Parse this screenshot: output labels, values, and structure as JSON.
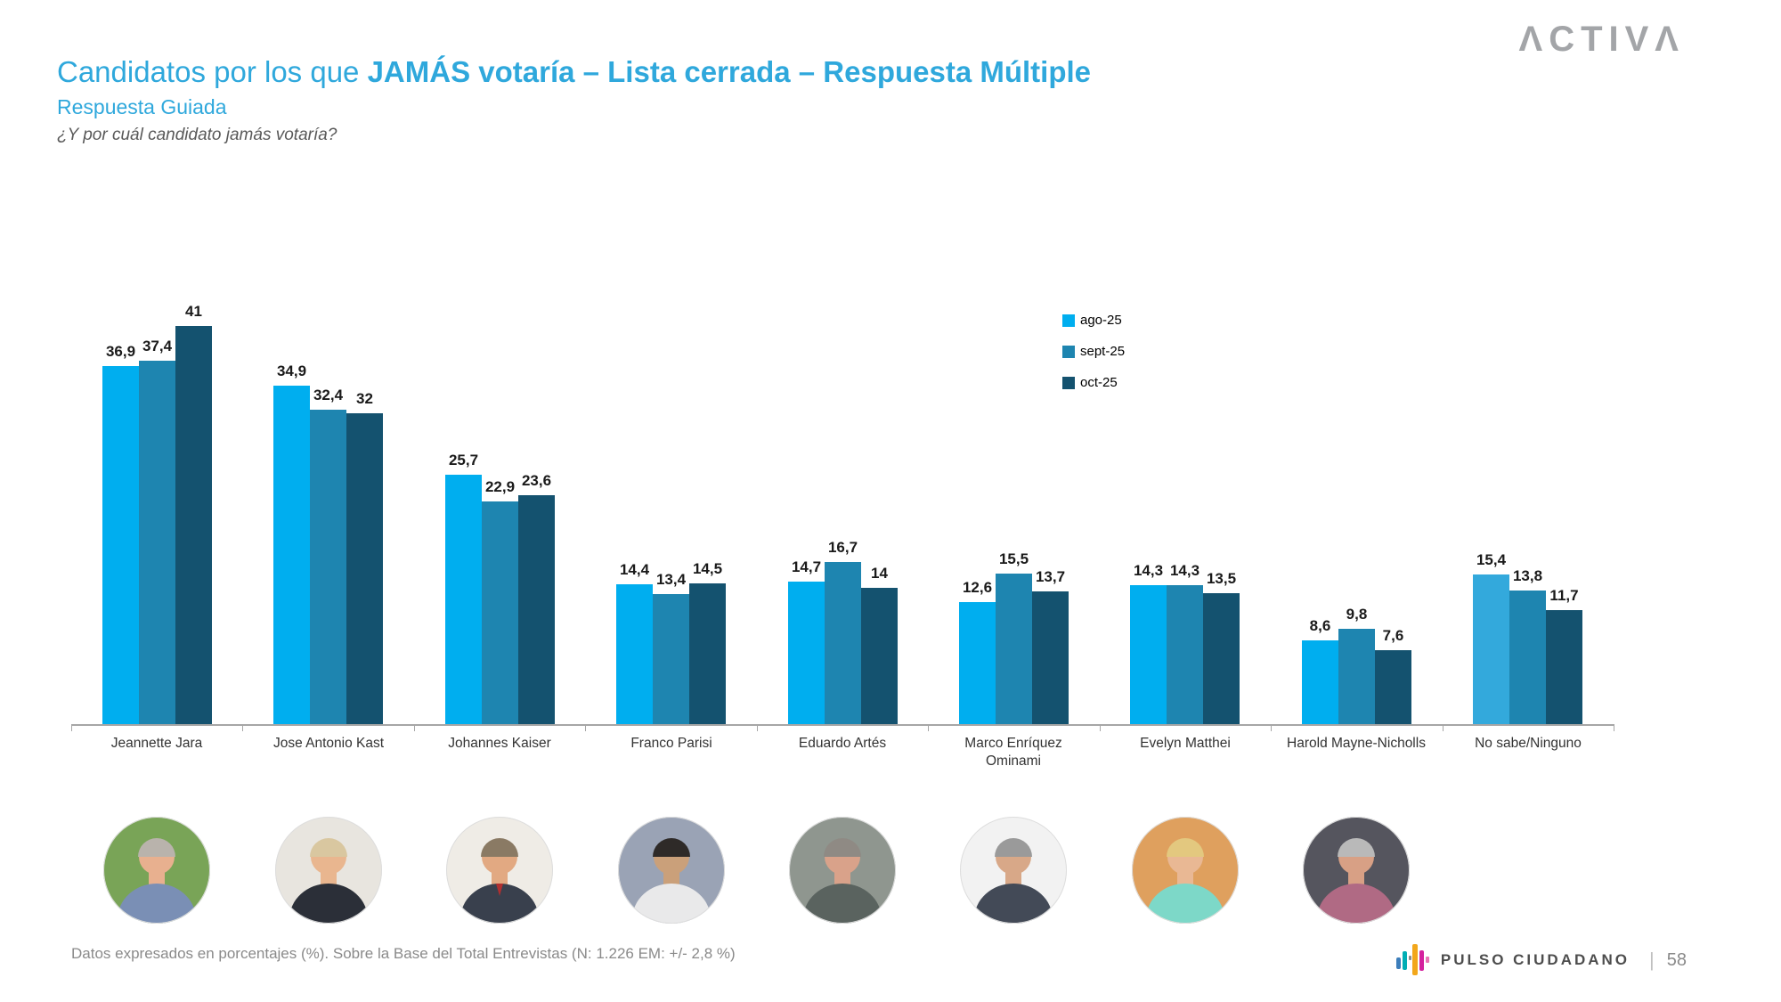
{
  "brand": {
    "name": "ACTIVA",
    "logo_text": "ΛCTIVΛ",
    "color": "#a3a5a8"
  },
  "header": {
    "title_regular": "Candidatos por los que ",
    "title_bold": "JAMÁS votaría – Lista cerrada – Respuesta Múltiple",
    "subtitle": "Respuesta Guiada",
    "question": "¿Y por cuál candidato jamás votaría?",
    "title_color": "#2fa8dc"
  },
  "chart_data": {
    "type": "bar",
    "title": "Candidatos por los que JAMÁS votaría – Lista cerrada – Respuesta Múltiple",
    "categories": [
      "Jeannette Jara",
      "Jose Antonio Kast",
      "Johannes Kaiser",
      "Franco Parisi",
      "Eduardo Artés",
      "Marco Enríquez Ominami",
      "Evelyn Matthei",
      "Harold Mayne-Nicholls",
      "No sabe/Ninguno"
    ],
    "series": [
      {
        "name": "ago-25",
        "color": "#00aeef",
        "values": [
          36.9,
          34.9,
          25.7,
          14.4,
          14.7,
          12.6,
          14.3,
          8.6,
          15.4
        ],
        "labels": [
          "36,9",
          "34,9",
          "25,7",
          "14,4",
          "14,7",
          "12,6",
          "14,3",
          "8,6",
          "15,4"
        ]
      },
      {
        "name": "sept-25",
        "color": "#1e85b0",
        "values": [
          37.4,
          32.4,
          22.9,
          13.4,
          16.7,
          15.5,
          14.3,
          9.8,
          13.8
        ],
        "labels": [
          "37,4",
          "32,4",
          "22,9",
          "13,4",
          "16,7",
          "15,5",
          "14,3",
          "9,8",
          "13,8"
        ]
      },
      {
        "name": "oct-25",
        "color": "#14526f",
        "values": [
          41,
          32,
          23.6,
          14.5,
          14,
          13.7,
          13.5,
          7.6,
          11.7
        ],
        "labels": [
          "41",
          "32",
          "23,6",
          "14,5",
          "14",
          "13,7",
          "13,5",
          "7,6",
          "11,7"
        ]
      }
    ],
    "last_category_ago_color": "#33a9dc",
    "ylim": [
      0,
      45
    ],
    "grid": false,
    "legend_position": "top-right",
    "value_labels": "above bars, comma decimal separator",
    "xlabel": "",
    "ylabel": ""
  },
  "avatars": [
    {
      "candidate": "Jeannette Jara",
      "bg": "#79a457",
      "hair": "#b9b3ac",
      "skin": "#e8b08f",
      "shirt": "#7a8fb5"
    },
    {
      "candidate": "Jose Antonio Kast",
      "bg": "#e8e5df",
      "hair": "#d9c7a0",
      "skin": "#e9b68f",
      "shirt": "#2b2f38"
    },
    {
      "candidate": "Johannes Kaiser",
      "bg": "#efece6",
      "hair": "#8a7a64",
      "skin": "#e2a982",
      "shirt": "#39404d",
      "tie": "#b03030"
    },
    {
      "candidate": "Franco Parisi",
      "bg": "#9aa3b5",
      "hair": "#2e2a28",
      "skin": "#caa07a",
      "shirt": "#e9e9ea"
    },
    {
      "candidate": "Eduardo Artés",
      "bg": "#8f968f",
      "hair": "#8f8a84",
      "skin": "#d9a28a",
      "shirt": "#5a635f"
    },
    {
      "candidate": "Marco Enríquez Ominami",
      "bg": "#f2f2f2",
      "hair": "#9a9a9a",
      "skin": "#d8a888",
      "shirt": "#434a57"
    },
    {
      "candidate": "Evelyn Matthei",
      "bg": "#dfa05e",
      "hair": "#e3c87f",
      "skin": "#e9b894",
      "shirt": "#7dd8c8"
    },
    {
      "candidate": "Harold Mayne-Nicholls",
      "bg": "#55555e",
      "hair": "#b9b9b9",
      "skin": "#d8a085",
      "shirt": "#b06a84"
    }
  ],
  "footer": {
    "note": "Datos expresados en porcentajes (%). Sobre la Base del Total Entrevistas (N: 1.226  EM: +/- 2,8 %)",
    "brand": "PULSO CIUDADANO",
    "page_number": "58",
    "icon_colors": [
      "#3d7ebb",
      "#00aeb4",
      "#8a8a8a",
      "#f2a71b",
      "#d4219e",
      "#e873b4"
    ]
  }
}
